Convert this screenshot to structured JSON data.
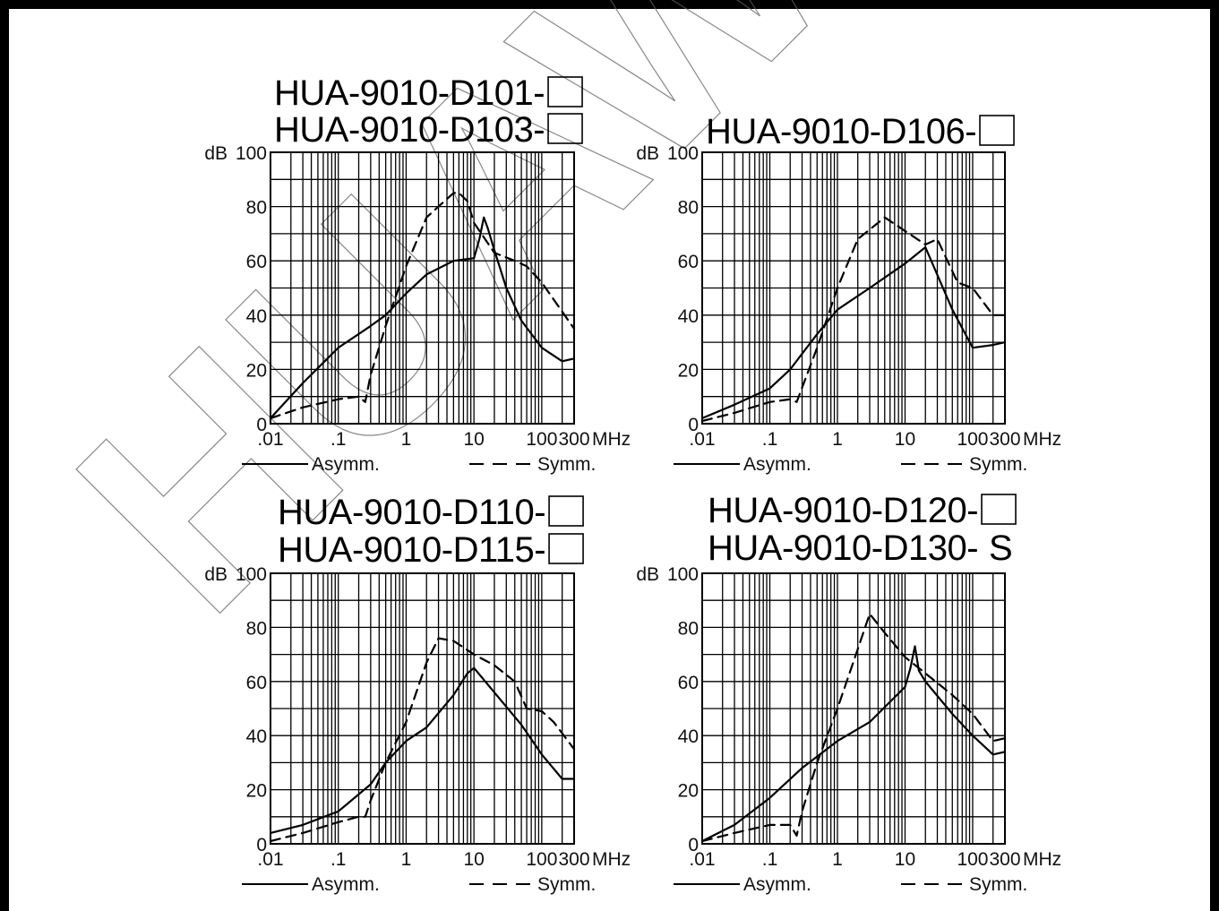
{
  "colors": {
    "ink": "#000000",
    "background": "#ffffff",
    "frame": "#000000",
    "watermark": "#606060"
  },
  "watermark": "HUAWEI",
  "chart_data": [
    {
      "type": "line",
      "title_lines": [
        "HUA-9010-D101-",
        "HUA-9010-D103-"
      ],
      "title_suffix": [
        "",
        ""
      ],
      "xscale": "log",
      "xlim": [
        0.01,
        300
      ],
      "ylim": [
        0,
        100
      ],
      "xtick_values": [
        0.01,
        0.1,
        1,
        10,
        100,
        300
      ],
      "xtick_labels": [
        ".01",
        ".1",
        "1",
        "10",
        "100",
        "300"
      ],
      "x_unit": "MHz",
      "ytick_values": [
        0,
        20,
        40,
        60,
        80,
        100
      ],
      "ytick_labels": [
        "0",
        "20",
        "40",
        "60",
        "80",
        "100"
      ],
      "y_unit": "dB",
      "grid": true,
      "legend_position": "bottom",
      "series": [
        {
          "name": "Asymm.",
          "style": "solid",
          "x": [
            0.01,
            0.03,
            0.1,
            0.3,
            0.5,
            1,
            2,
            5,
            10,
            12,
            14,
            16,
            20,
            30,
            50,
            100,
            200,
            300
          ],
          "y": [
            2,
            15,
            28,
            36,
            40,
            48,
            55,
            60,
            61,
            68,
            76,
            72,
            64,
            50,
            38,
            28,
            23,
            24
          ]
        },
        {
          "name": "Symm.",
          "style": "dashed",
          "x": [
            0.01,
            0.03,
            0.1,
            0.2,
            0.25,
            0.3,
            0.5,
            1,
            2,
            5,
            6,
            8,
            10,
            20,
            40,
            60,
            100,
            300
          ],
          "y": [
            2,
            6,
            9,
            10,
            8,
            18,
            36,
            58,
            76,
            85,
            85,
            82,
            74,
            63,
            60,
            58,
            52,
            35
          ]
        }
      ],
      "legend": [
        "Asymm.",
        "Symm."
      ]
    },
    {
      "type": "line",
      "title_lines": [
        "HUA-9010-D106-"
      ],
      "title_suffix": [
        ""
      ],
      "xscale": "log",
      "xlim": [
        0.01,
        300
      ],
      "ylim": [
        0,
        100
      ],
      "xtick_values": [
        0.01,
        0.1,
        1,
        10,
        100,
        300
      ],
      "xtick_labels": [
        ".01",
        ".1",
        "1",
        "10",
        "100",
        "300"
      ],
      "x_unit": "MHz",
      "ytick_values": [
        0,
        20,
        40,
        60,
        80,
        100
      ],
      "ytick_labels": [
        "0",
        "20",
        "40",
        "60",
        "80",
        "100"
      ],
      "y_unit": "dB",
      "grid": true,
      "legend_position": "bottom",
      "series": [
        {
          "name": "Asymm.",
          "style": "solid",
          "x": [
            0.01,
            0.03,
            0.1,
            0.2,
            0.5,
            1,
            3,
            10,
            20,
            50,
            100,
            200,
            300
          ],
          "y": [
            2,
            7,
            13,
            20,
            33,
            42,
            50,
            59,
            65,
            42,
            28,
            29,
            30
          ]
        },
        {
          "name": "Symm.",
          "style": "dashed",
          "x": [
            0.01,
            0.03,
            0.1,
            0.2,
            0.25,
            0.5,
            1,
            2,
            5,
            10,
            20,
            30,
            60,
            100,
            200,
            300
          ],
          "y": [
            1,
            4,
            8,
            9,
            8,
            28,
            50,
            68,
            76,
            71,
            66,
            68,
            52,
            50,
            40,
            40
          ]
        }
      ],
      "legend": [
        "Asymm.",
        "Symm."
      ]
    },
    {
      "type": "line",
      "title_lines": [
        "HUA-9010-D110-",
        "HUA-9010-D115-"
      ],
      "title_suffix": [
        "",
        ""
      ],
      "xscale": "log",
      "xlim": [
        0.01,
        300
      ],
      "ylim": [
        0,
        100
      ],
      "xtick_values": [
        0.01,
        0.1,
        1,
        10,
        100,
        300
      ],
      "xtick_labels": [
        ".01",
        ".1",
        "1",
        "10",
        "100",
        "300"
      ],
      "x_unit": "MHz",
      "ytick_values": [
        0,
        20,
        40,
        60,
        80,
        100
      ],
      "ytick_labels": [
        "0",
        "20",
        "40",
        "60",
        "80",
        "100"
      ],
      "y_unit": "dB",
      "grid": true,
      "legend_position": "bottom",
      "series": [
        {
          "name": "Asymm.",
          "style": "solid",
          "x": [
            0.01,
            0.03,
            0.1,
            0.3,
            0.5,
            1,
            2,
            5,
            8,
            10,
            20,
            50,
            100,
            200,
            300
          ],
          "y": [
            4,
            7,
            12,
            22,
            30,
            38,
            43,
            55,
            63,
            65,
            56,
            44,
            33,
            24,
            24
          ]
        },
        {
          "name": "Symm.",
          "style": "dashed",
          "x": [
            0.01,
            0.03,
            0.1,
            0.2,
            0.25,
            0.3,
            0.5,
            1,
            2,
            3,
            5,
            10,
            20,
            40,
            60,
            100,
            150,
            300
          ],
          "y": [
            1,
            4,
            8,
            10,
            10,
            16,
            30,
            45,
            67,
            76,
            75,
            70,
            66,
            60,
            50,
            49,
            45,
            35
          ]
        }
      ],
      "legend": [
        "Asymm.",
        "Symm."
      ]
    },
    {
      "type": "line",
      "title_lines": [
        "HUA-9010-D120-",
        "HUA-9010-D130-"
      ],
      "title_suffix": [
        "",
        "S"
      ],
      "xscale": "log",
      "xlim": [
        0.01,
        300
      ],
      "ylim": [
        0,
        100
      ],
      "xtick_values": [
        0.01,
        0.1,
        1,
        10,
        100,
        300
      ],
      "xtick_labels": [
        ".01",
        ".1",
        "1",
        "10",
        "100",
        "300"
      ],
      "x_unit": "MHz",
      "ytick_values": [
        0,
        20,
        40,
        60,
        80,
        100
      ],
      "ytick_labels": [
        "0",
        "20",
        "40",
        "60",
        "80",
        "100"
      ],
      "y_unit": "dB",
      "grid": true,
      "legend_position": "bottom",
      "series": [
        {
          "name": "Asymm.",
          "style": "solid",
          "x": [
            0.01,
            0.03,
            0.1,
            0.3,
            1,
            3,
            10,
            12,
            14,
            16,
            20,
            50,
            100,
            200,
            300
          ],
          "y": [
            1,
            7,
            17,
            28,
            38,
            45,
            58,
            65,
            73,
            64,
            60,
            48,
            40,
            33,
            34
          ]
        },
        {
          "name": "Symm.",
          "style": "dashed",
          "x": [
            0.01,
            0.03,
            0.1,
            0.2,
            0.25,
            0.3,
            0.5,
            1,
            2,
            3,
            5,
            10,
            20,
            50,
            100,
            200,
            300
          ],
          "y": [
            1,
            4,
            7,
            7,
            3,
            12,
            30,
            50,
            72,
            85,
            78,
            69,
            63,
            55,
            48,
            38,
            39
          ]
        }
      ],
      "legend": [
        "Asymm.",
        "Symm."
      ]
    }
  ]
}
